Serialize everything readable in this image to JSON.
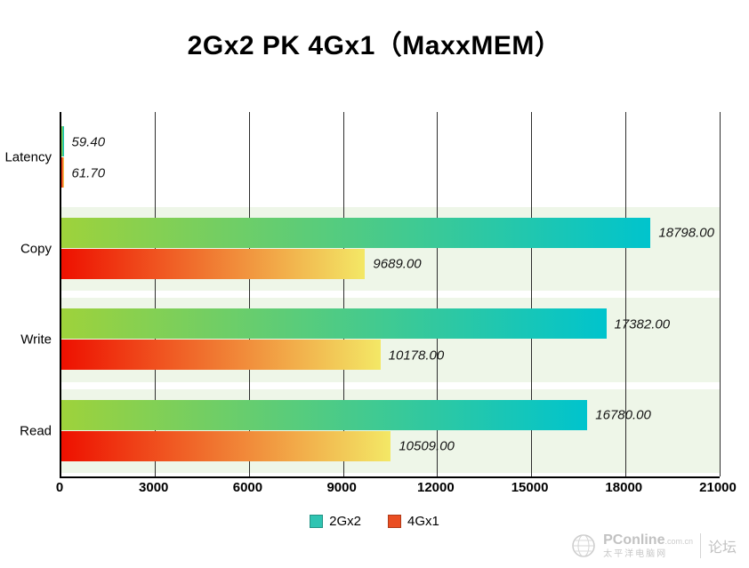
{
  "title": "2Gx2 PK 4Gx1（MaxxMEM）",
  "legend": {
    "items": [
      {
        "label": "2Gx2",
        "color": "#2fc4b2"
      },
      {
        "label": "4Gx1",
        "color": "#ea4e22"
      }
    ]
  },
  "watermark": {
    "brand": "PConline",
    "brand_suffix": ".com.cn",
    "subtitle": "太平洋电脑网",
    "forum": "论坛"
  },
  "chart_data": {
    "type": "bar",
    "orientation": "horizontal",
    "title": "2Gx2 PK 4Gx1（MaxxMEM）",
    "categories": [
      "Latency",
      "Copy",
      "Write",
      "Read"
    ],
    "series": [
      {
        "name": "2Gx2",
        "values": [
          59.4,
          18798.0,
          17382.0,
          16780.0
        ],
        "labels": [
          "59.40",
          "18798.00",
          "17382.00",
          "16780.00"
        ],
        "gradient": [
          "#9ed23b",
          "#00c4cd"
        ]
      },
      {
        "name": "4Gx1",
        "values": [
          61.7,
          9689.0,
          10178.0,
          10509.0
        ],
        "labels": [
          "61.70",
          "9689.00",
          "10178.00",
          "10509.00"
        ],
        "gradient": [
          "#ee1000",
          "#f3e866"
        ]
      }
    ],
    "xlim": [
      0,
      21000
    ],
    "xticks": [
      0,
      3000,
      6000,
      9000,
      12000,
      15000,
      18000,
      21000
    ],
    "grid": true,
    "legend_position": "bottom",
    "band_colors": [
      "#ffffff",
      "#eef6e8",
      "#eef6e8",
      "#eef6e8"
    ],
    "value_label_style": "italic"
  }
}
